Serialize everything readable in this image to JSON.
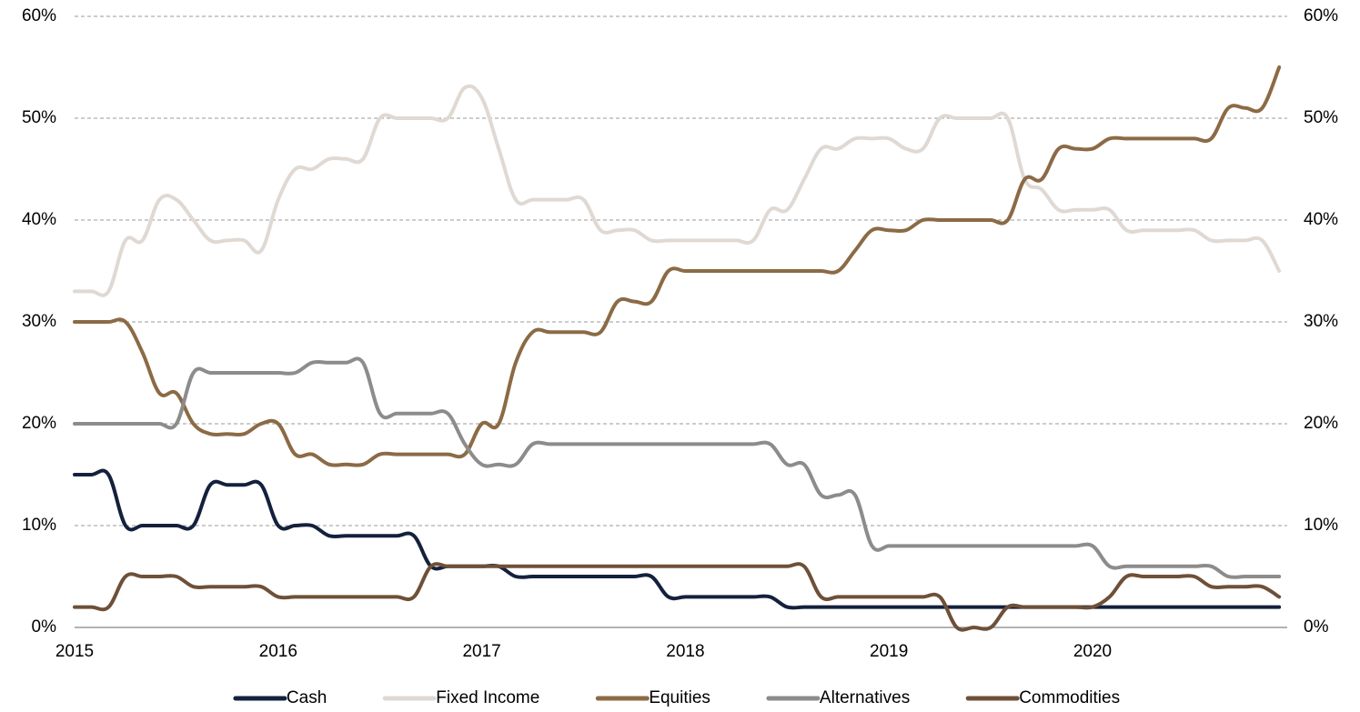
{
  "chart_data": {
    "type": "line",
    "categories": [
      "2015",
      null,
      null,
      null,
      null,
      null,
      null,
      null,
      null,
      null,
      null,
      null,
      "2016",
      null,
      null,
      null,
      null,
      null,
      null,
      null,
      null,
      null,
      null,
      null,
      "2017",
      null,
      null,
      null,
      null,
      null,
      null,
      null,
      null,
      null,
      null,
      null,
      "2018",
      null,
      null,
      null,
      null,
      null,
      null,
      null,
      null,
      null,
      null,
      null,
      "2019",
      null,
      null,
      null,
      null,
      null,
      null,
      null,
      null,
      null,
      null,
      null,
      "2020",
      null,
      null,
      null,
      null,
      null,
      null,
      null,
      null,
      null,
      null,
      null
    ],
    "series": [
      {
        "name": "Cash",
        "color": "#14213d",
        "values": [
          15,
          15,
          15,
          10,
          10,
          10,
          10,
          10,
          14,
          14,
          14,
          14,
          10,
          10,
          10,
          9,
          9,
          9,
          9,
          9,
          9,
          6,
          6,
          6,
          6,
          6,
          5,
          5,
          5,
          5,
          5,
          5,
          5,
          5,
          5,
          3,
          3,
          3,
          3,
          3,
          3,
          3,
          2,
          2,
          2,
          2,
          2,
          2,
          2,
          2,
          2,
          2,
          2,
          2,
          2,
          2,
          2,
          2,
          2,
          2,
          2,
          2,
          2,
          2,
          2,
          2,
          2,
          2,
          2,
          2,
          2,
          2
        ]
      },
      {
        "name": "Fixed Income",
        "color": "#e0d9d3",
        "values": [
          33,
          33,
          33,
          38,
          38,
          42,
          42,
          40,
          38,
          38,
          38,
          37,
          42,
          45,
          45,
          46,
          46,
          46,
          50,
          50,
          50,
          50,
          50,
          53,
          52,
          47,
          42,
          42,
          42,
          42,
          42,
          39,
          39,
          39,
          38,
          38,
          38,
          38,
          38,
          38,
          38,
          41,
          41,
          44,
          47,
          47,
          48,
          48,
          48,
          47,
          47,
          50,
          50,
          50,
          50,
          50,
          44,
          43,
          41,
          41,
          41,
          41,
          39,
          39,
          39,
          39,
          39,
          38,
          38,
          38,
          38,
          35
        ]
      },
      {
        "name": "Equities",
        "color": "#8b6a45",
        "values": [
          30,
          30,
          30,
          30,
          27,
          23,
          23,
          20,
          19,
          19,
          19,
          20,
          20,
          17,
          17,
          16,
          16,
          16,
          17,
          17,
          17,
          17,
          17,
          17,
          20,
          20,
          26,
          29,
          29,
          29,
          29,
          29,
          32,
          32,
          32,
          35,
          35,
          35,
          35,
          35,
          35,
          35,
          35,
          35,
          35,
          35,
          37,
          39,
          39,
          39,
          40,
          40,
          40,
          40,
          40,
          40,
          44,
          44,
          47,
          47,
          47,
          48,
          48,
          48,
          48,
          48,
          48,
          48,
          51,
          51,
          51,
          55
        ]
      },
      {
        "name": "Alternatives",
        "color": "#8c8c8c",
        "values": [
          20,
          20,
          20,
          20,
          20,
          20,
          20,
          25,
          25,
          25,
          25,
          25,
          25,
          25,
          26,
          26,
          26,
          26,
          21,
          21,
          21,
          21,
          21,
          18,
          16,
          16,
          16,
          18,
          18,
          18,
          18,
          18,
          18,
          18,
          18,
          18,
          18,
          18,
          18,
          18,
          18,
          18,
          16,
          16,
          13,
          13,
          13,
          8,
          8,
          8,
          8,
          8,
          8,
          8,
          8,
          8,
          8,
          8,
          8,
          8,
          8,
          6,
          6,
          6,
          6,
          6,
          6,
          6,
          5,
          5,
          5,
          5
        ]
      },
      {
        "name": "Commodities",
        "color": "#6e5038",
        "values": [
          2,
          2,
          2,
          5,
          5,
          5,
          5,
          4,
          4,
          4,
          4,
          4,
          3,
          3,
          3,
          3,
          3,
          3,
          3,
          3,
          3,
          6,
          6,
          6,
          6,
          6,
          6,
          6,
          6,
          6,
          6,
          6,
          6,
          6,
          6,
          6,
          6,
          6,
          6,
          6,
          6,
          6,
          6,
          6,
          3,
          3,
          3,
          3,
          3,
          3,
          3,
          3,
          0,
          0,
          0,
          2,
          2,
          2,
          2,
          2,
          2,
          3,
          5,
          5,
          5,
          5,
          5,
          4,
          4,
          4,
          4,
          3
        ]
      }
    ],
    "ylim": [
      0,
      60
    ],
    "yticks": [
      {
        "value": 0,
        "label": "0%"
      },
      {
        "value": 10,
        "label": "10%"
      },
      {
        "value": 20,
        "label": "20%"
      },
      {
        "value": 30,
        "label": "30%"
      },
      {
        "value": 40,
        "label": "40%"
      },
      {
        "value": 50,
        "label": "50%"
      },
      {
        "value": 60,
        "label": "60%"
      }
    ],
    "y2lim": [
      0,
      60
    ],
    "y2ticks": [
      {
        "value": 0,
        "label": "0%"
      },
      {
        "value": 10,
        "label": "10%"
      },
      {
        "value": 20,
        "label": "20%"
      },
      {
        "value": 30,
        "label": "30%"
      },
      {
        "value": 40,
        "label": "40%"
      },
      {
        "value": 50,
        "label": "50%"
      },
      {
        "value": 60,
        "label": "60%"
      }
    ],
    "grid": true,
    "legend": "bottom"
  }
}
